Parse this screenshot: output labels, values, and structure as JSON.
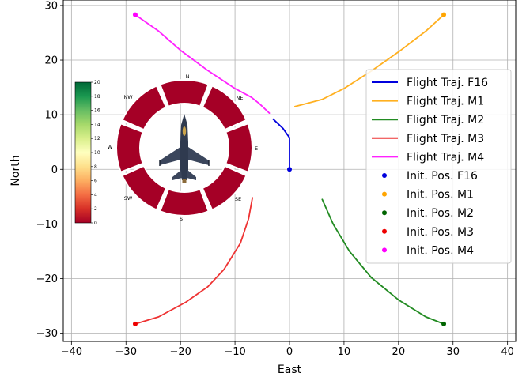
{
  "chart_data": {
    "type": "line",
    "title": "",
    "xlabel": "East",
    "ylabel": "North",
    "xlim": [
      -41.5,
      41.5
    ],
    "ylim": [
      -31.5,
      31
    ],
    "xticks": [
      -40,
      -30,
      -20,
      -10,
      0,
      10,
      20,
      30,
      40
    ],
    "yticks": [
      -30,
      -20,
      -10,
      0,
      10,
      20,
      30
    ],
    "xtick_labels": [
      "−40",
      "−30",
      "−20",
      "−10",
      "0",
      "10",
      "20",
      "30",
      "40"
    ],
    "ytick_labels": [
      "−30",
      "−20",
      "−10",
      "0",
      "10",
      "20",
      "30"
    ],
    "grid": true,
    "legend_position": "right",
    "series": [
      {
        "name": "Flight Traj. F16",
        "color": "#0000dd",
        "x": [
          -3,
          -1.2,
          0.0,
          0.0
        ],
        "y": [
          9.2,
          7.5,
          5.8,
          0.0
        ]
      },
      {
        "name": "Flight Traj. M1",
        "color": "#ffb020",
        "x": [
          1,
          6,
          10,
          15,
          20,
          25,
          28.3
        ],
        "y": [
          11.5,
          12.8,
          14.8,
          18.0,
          21.5,
          25.3,
          28.3
        ]
      },
      {
        "name": "Flight Traj. M2",
        "color": "#228b22",
        "x": [
          6,
          8,
          11,
          15,
          20,
          25,
          28.3
        ],
        "y": [
          -5.5,
          -10,
          -15,
          -19.8,
          -23.9,
          -27,
          -28.3
        ]
      },
      {
        "name": "Flight Traj. M3",
        "color": "#ee3333",
        "x": [
          -6.8,
          -7.5,
          -9,
          -12,
          -15,
          -19,
          -24,
          -28.3
        ],
        "y": [
          -5.2,
          -9,
          -13.5,
          -18.3,
          -21.5,
          -24.3,
          -27,
          -28.3
        ]
      },
      {
        "name": "Flight Traj. M4",
        "color": "#ff22ff",
        "x": [
          -28.3,
          -24,
          -20,
          -15,
          -10,
          -7,
          -5.5,
          -3.7
        ],
        "y": [
          28.3,
          25.3,
          21.8,
          18.1,
          14.8,
          13.2,
          12,
          10.3
        ]
      }
    ],
    "init_positions": [
      {
        "name": "Init. Pos. F16",
        "color": "#0000dd",
        "x": 0,
        "y": 0
      },
      {
        "name": "Init. Pos. M1",
        "color": "#ffa500",
        "x": 28.3,
        "y": 28.3
      },
      {
        "name": "Init. Pos. M2",
        "color": "#006400",
        "x": 28.3,
        "y": -28.3
      },
      {
        "name": "Init. Pos. M3",
        "color": "#ee0000",
        "x": -28.3,
        "y": -28.3
      },
      {
        "name": "Init. Pos. M4",
        "color": "#ff00ff",
        "x": -28.3,
        "y": 28.3
      }
    ]
  },
  "radar": {
    "directions": [
      "N",
      "NE",
      "E",
      "SE",
      "S",
      "SW",
      "W",
      "NW"
    ],
    "sector_values": [
      0,
      0,
      0,
      0,
      0,
      0,
      0,
      0
    ],
    "sector_color": "#a50026",
    "colorbar": {
      "min": 0,
      "max": 20,
      "ticks": [
        "0",
        "2",
        "4",
        "6",
        "8",
        "10",
        "12",
        "14",
        "16",
        "18",
        "20"
      ],
      "colors": [
        "#a50026",
        "#d73027",
        "#f46d43",
        "#fdae61",
        "#fee08b",
        "#ffffbf",
        "#d9ef8b",
        "#a6d96a",
        "#66bd63",
        "#1a9850",
        "#006837"
      ]
    }
  }
}
